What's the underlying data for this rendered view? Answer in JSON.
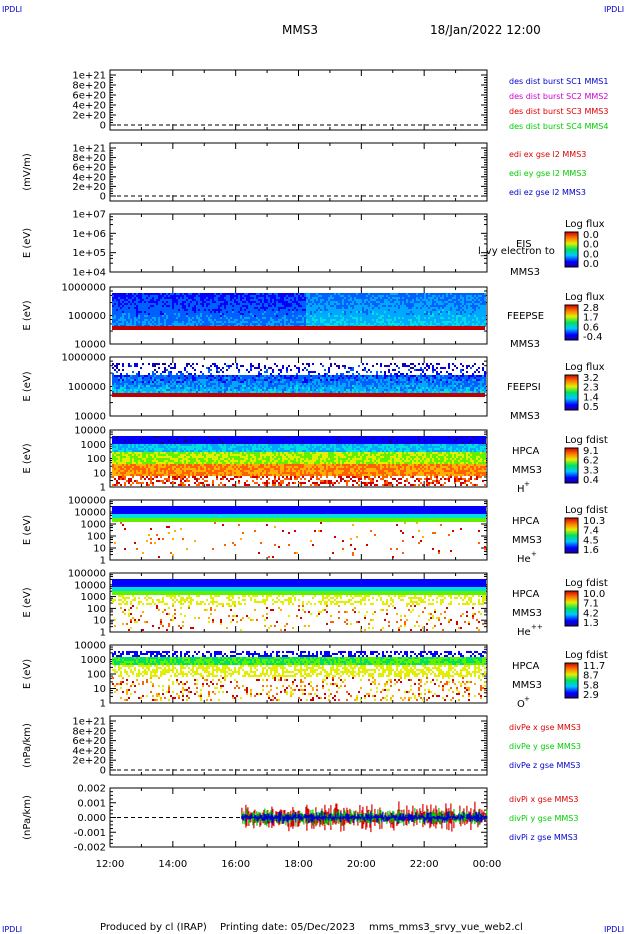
{
  "header": {
    "corner_left_top": "IPDLI",
    "corner_right_top": "IPDLI",
    "corner_left_bottom": "IPDLI",
    "corner_right_bottom": "IPDLI",
    "spacecraft": "MMS3",
    "date": "18/Jan/2022 12:00"
  },
  "footer": {
    "produced_by": "Produced by cl (IRAP)",
    "printing_date": "Printing date: 05/Dec/2023",
    "filename": "mms_mms3_srvy_vue_web2.cl"
  },
  "colors": {
    "mms1": "#0000cc",
    "mms2": "#cc00cc",
    "mms3": "#dd0000",
    "mms4": "#00cc00",
    "x": "#dd0000",
    "y": "#00cc00",
    "z": "#0000cc"
  },
  "chart_data": [
    {
      "type": "line",
      "panel": "des-dist-burst",
      "ylabel": "",
      "yticks": [
        "0",
        "2e+20",
        "4e+20",
        "6e+20",
        "8e+20",
        "1e+21"
      ],
      "legend": [
        {
          "text": "des dist burst SC1 MMS1",
          "color": "#0000cc"
        },
        {
          "text": "des dist burst SC2 MMS2",
          "color": "#cc00cc"
        },
        {
          "text": "des dist burst SC3 MMS3",
          "color": "#dd0000"
        },
        {
          "text": "des dist burst SC4 MMS4",
          "color": "#00cc00"
        }
      ]
    },
    {
      "type": "line",
      "panel": "edi-e",
      "ylabel": "(mV/m)",
      "yticks": [
        "0",
        "2e+20",
        "4e+20",
        "6e+20",
        "8e+20",
        "1e+21"
      ],
      "legend": [
        {
          "text": "edi ex gse l2 MMS3",
          "color": "#dd0000"
        },
        {
          "text": "edi ey gse l2 MMS3",
          "color": "#00cc00"
        },
        {
          "text": "edi ez gse l2 MMS3",
          "color": "#0000cc"
        }
      ]
    },
    {
      "type": "heatmap",
      "panel": "eis",
      "ylabel": "E (eV)",
      "yticks": [
        "1e+04",
        "1e+05",
        "1e+06",
        "1e+07"
      ],
      "instrument": "EIS",
      "overlay_text": "l_vy electron to",
      "spacecraft": "MMS3",
      "colorbar_title": "Log flux",
      "colorbar_ticks": [
        "0.0",
        "0.0",
        "0.0",
        "0.0"
      ]
    },
    {
      "type": "heatmap",
      "panel": "feepse",
      "ylabel": "E (eV)",
      "yticks": [
        "10000",
        "100000",
        "1000000"
      ],
      "instrument": "FEEPSE",
      "spacecraft": "MMS3",
      "colorbar_title": "Log flux",
      "colorbar_ticks": [
        "2.8",
        "1.7",
        "0.6",
        "-0.4"
      ]
    },
    {
      "type": "heatmap",
      "panel": "feepsi",
      "ylabel": "E (eV)",
      "yticks": [
        "10000",
        "100000",
        "1000000"
      ],
      "instrument": "FEEPSI",
      "spacecraft": "MMS3",
      "colorbar_title": "Log flux",
      "colorbar_ticks": [
        "3.2",
        "2.3",
        "1.4",
        "0.5"
      ]
    },
    {
      "type": "heatmap",
      "panel": "hpca-h",
      "ylabel": "E (eV)",
      "yticks": [
        "1",
        "10",
        "100",
        "1000",
        "10000"
      ],
      "instrument": "HPCA",
      "spacecraft": "MMS3",
      "species": "H",
      "species_sup": "+",
      "colorbar_title": "Log fdist",
      "colorbar_ticks": [
        "9.1",
        "6.2",
        "3.3",
        "0.4"
      ]
    },
    {
      "type": "heatmap",
      "panel": "hpca-he",
      "ylabel": "E (eV)",
      "yticks": [
        "1",
        "10",
        "100",
        "1000",
        "10000",
        "100000"
      ],
      "instrument": "HPCA",
      "spacecraft": "MMS3",
      "species": "He",
      "species_sup": "+",
      "colorbar_title": "Log fdist",
      "colorbar_ticks": [
        "10.3",
        "7.4",
        "4.5",
        "1.6"
      ]
    },
    {
      "type": "heatmap",
      "panel": "hpca-hepp",
      "ylabel": "E (eV)",
      "yticks": [
        "1",
        "10",
        "100",
        "1000",
        "10000",
        "100000"
      ],
      "instrument": "HPCA",
      "spacecraft": "MMS3",
      "species": "He",
      "species_sup": "++",
      "colorbar_title": "Log fdist",
      "colorbar_ticks": [
        "10.0",
        "7.1",
        "4.2",
        "1.3"
      ]
    },
    {
      "type": "heatmap",
      "panel": "hpca-o",
      "ylabel": "E (eV)",
      "yticks": [
        "1",
        "10",
        "100",
        "1000",
        "10000"
      ],
      "instrument": "HPCA",
      "spacecraft": "MMS3",
      "species": "O",
      "species_sup": "+",
      "colorbar_title": "Log fdist",
      "colorbar_ticks": [
        "11.7",
        "8.7",
        "5.8",
        "2.9"
      ]
    },
    {
      "type": "line",
      "panel": "divpe",
      "ylabel": "(nPa/km)",
      "yticks": [
        "0",
        "2e+20",
        "4e+20",
        "6e+20",
        "8e+20",
        "1e+21"
      ],
      "legend": [
        {
          "text": "divPe x gse MMS3",
          "color": "#dd0000"
        },
        {
          "text": "divPe y gse MMS3",
          "color": "#00cc00"
        },
        {
          "text": "divPe z gse MMS3",
          "color": "#0000cc"
        }
      ]
    },
    {
      "type": "line",
      "panel": "divpi",
      "ylabel": "(nPa/km)",
      "yticks": [
        "-0.002",
        "-0.001",
        "0.000",
        "0.001",
        "0.002"
      ],
      "ylim": [
        -0.002,
        0.002
      ],
      "data_start_hour": 16.2,
      "legend": [
        {
          "text": "divPi x gse MMS3",
          "color": "#dd0000"
        },
        {
          "text": "divPi y gse MMS3",
          "color": "#00cc00"
        },
        {
          "text": "divPi z gse MMS3",
          "color": "#0000cc"
        }
      ]
    }
  ],
  "xaxis": {
    "ticks": [
      "12:00",
      "14:00",
      "16:00",
      "18:00",
      "20:00",
      "22:00",
      "00:00"
    ]
  }
}
